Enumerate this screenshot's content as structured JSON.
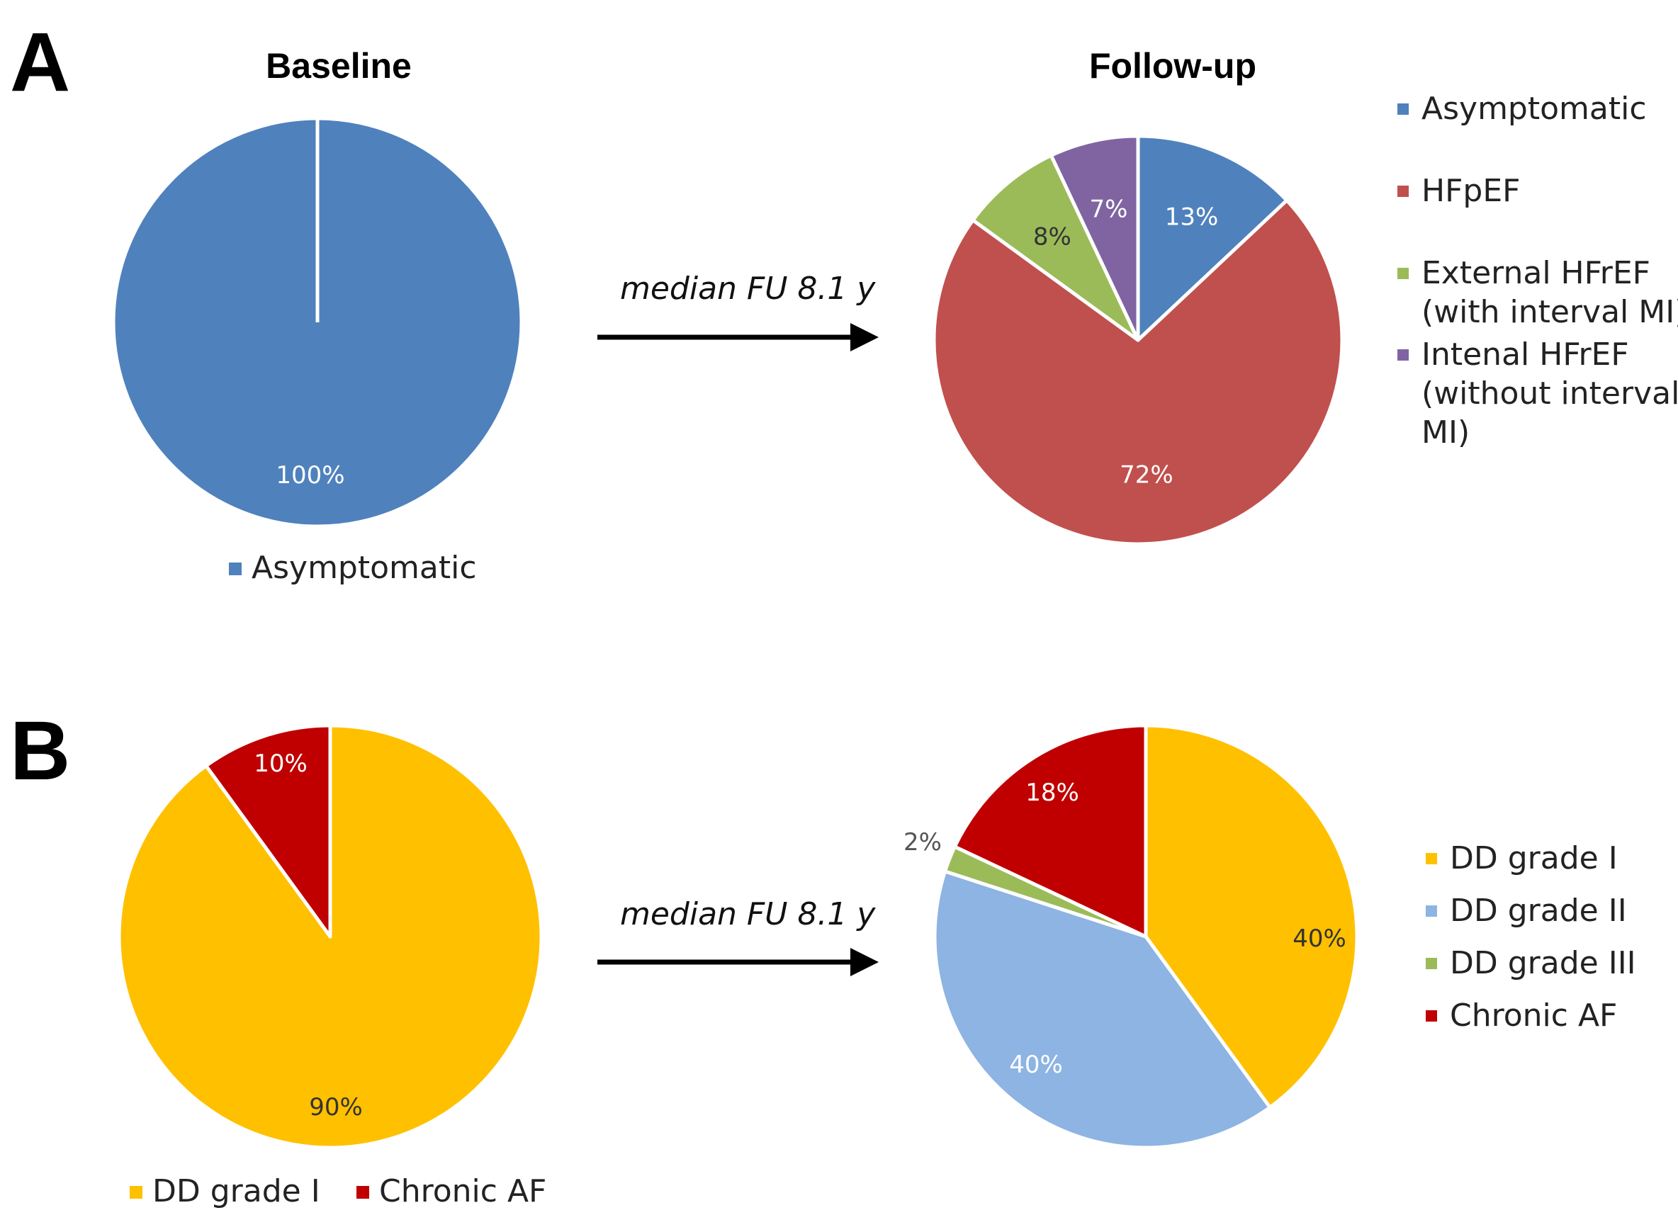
{
  "panels": [
    {
      "letter": "A"
    },
    {
      "letter": "B"
    }
  ],
  "arrow_label": "median FU 8.1 y",
  "chart_data": [
    {
      "type": "pie",
      "panel": "A",
      "title": "Baseline",
      "legend_position": "bottom",
      "slices": [
        {
          "label": "Asymptomatic",
          "value": 100,
          "value_label": "100%",
          "color": "#4f81bd",
          "label_color": "#ffffff"
        }
      ]
    },
    {
      "type": "pie",
      "panel": "A",
      "title": "Follow-up",
      "legend_position": "right",
      "slices": [
        {
          "label": "Asymptomatic",
          "value": 13,
          "value_label": "13%",
          "color": "#4f81bd",
          "label_color": "#ffffff"
        },
        {
          "label": "HFpEF",
          "value": 72,
          "value_label": "72%",
          "color": "#c0504d",
          "label_color": "#ffffff"
        },
        {
          "label": "External HFrEF (with interval MI)",
          "value": 8,
          "value_label": "8%",
          "color": "#9bbb59",
          "label_color": "#333333"
        },
        {
          "label": "Intenal HFrEF (without interval MI)",
          "value": 7,
          "value_label": "7%",
          "color": "#8064a2",
          "label_color": "#ffffff"
        }
      ],
      "legend_lines": [
        [
          "Asymptomatic"
        ],
        [
          "HFpEF"
        ],
        [
          "External HFrEF",
          "(with interval MI)"
        ],
        [
          "Intenal HFrEF",
          "(without interval",
          "MI)"
        ]
      ]
    },
    {
      "type": "pie",
      "panel": "B",
      "title": "",
      "legend_position": "bottom",
      "slices": [
        {
          "label": "DD grade I",
          "value": 90,
          "value_label": "90%",
          "color": "#ffc000",
          "label_color": "#333333"
        },
        {
          "label": "Chronic AF",
          "value": 10,
          "value_label": "10%",
          "color": "#c00000",
          "label_color": "#ffffff"
        }
      ]
    },
    {
      "type": "pie",
      "panel": "B",
      "title": "",
      "legend_position": "right",
      "slices": [
        {
          "label": "DD grade I",
          "value": 40,
          "value_label": "40%",
          "color": "#ffc000",
          "label_color": "#333333"
        },
        {
          "label": "DD grade II",
          "value": 40,
          "value_label": "40%",
          "color": "#8db4e2",
          "label_color": "#ffffff"
        },
        {
          "label": "DD grade III",
          "value": 2,
          "value_label": "2%",
          "color": "#9bbb59",
          "label_color": "#555555"
        },
        {
          "label": "Chronic AF",
          "value": 18,
          "value_label": "18%",
          "color": "#c00000",
          "label_color": "#ffffff"
        }
      ]
    }
  ]
}
